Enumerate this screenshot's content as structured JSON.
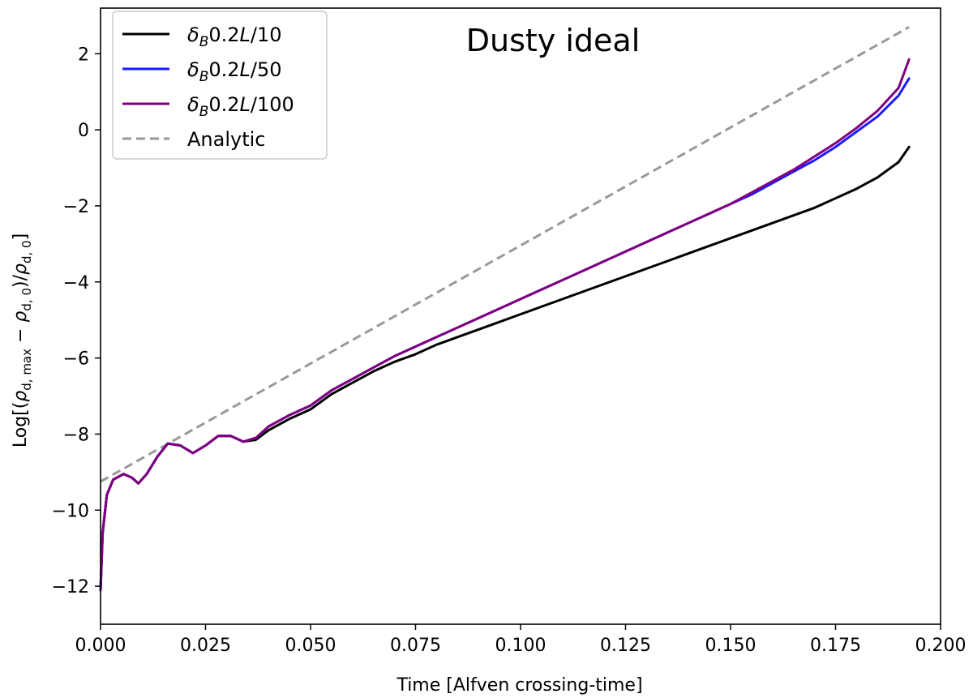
{
  "chart_data": {
    "type": "line",
    "title": "Dusty ideal",
    "xlabel": "Time [Alfven crossing-time]",
    "ylabel": "Log[(ρ_{d,max} − ρ_{d,0})/ρ_{d,0}]",
    "xlim": [
      0.0,
      0.2
    ],
    "ylim": [
      -13,
      3.2
    ],
    "xticks": [
      "0.000",
      "0.025",
      "0.050",
      "0.075",
      "0.100",
      "0.125",
      "0.150",
      "0.175",
      "0.200"
    ],
    "yticks": [
      "−12",
      "−10",
      "−8",
      "−6",
      "−4",
      "−2",
      "0",
      "2"
    ],
    "grid": false,
    "legend_position": "top-left",
    "series": [
      {
        "name": "δ_B 0.2L/10",
        "color": "#000000",
        "dash": "solid",
        "x": [
          0,
          0.0005,
          0.0015,
          0.003,
          0.0055,
          0.0075,
          0.009,
          0.011,
          0.0135,
          0.016,
          0.019,
          0.022,
          0.025,
          0.028,
          0.031,
          0.034,
          0.037,
          0.04,
          0.045,
          0.05,
          0.055,
          0.06,
          0.065,
          0.07,
          0.075,
          0.08,
          0.085,
          0.09,
          0.095,
          0.1,
          0.105,
          0.11,
          0.115,
          0.12,
          0.125,
          0.13,
          0.135,
          0.14,
          0.145,
          0.15,
          0.155,
          0.16,
          0.165,
          0.17,
          0.175,
          0.18,
          0.185,
          0.19,
          0.1925
        ],
        "y": [
          -12.1,
          -10.6,
          -9.6,
          -9.2,
          -9.05,
          -9.15,
          -9.3,
          -9.05,
          -8.6,
          -8.25,
          -8.3,
          -8.5,
          -8.3,
          -8.05,
          -8.05,
          -8.2,
          -8.15,
          -7.9,
          -7.6,
          -7.35,
          -6.95,
          -6.65,
          -6.35,
          -6.1,
          -5.9,
          -5.65,
          -5.45,
          -5.25,
          -5.05,
          -4.85,
          -4.65,
          -4.45,
          -4.25,
          -4.05,
          -3.85,
          -3.65,
          -3.45,
          -3.25,
          -3.05,
          -2.85,
          -2.65,
          -2.45,
          -2.25,
          -2.05,
          -1.8,
          -1.55,
          -1.25,
          -0.85,
          -0.45
        ]
      },
      {
        "name": "δ_B 0.2L/50",
        "color": "#1a1aff",
        "dash": "solid",
        "x": [
          0,
          0.0005,
          0.0015,
          0.003,
          0.0055,
          0.0075,
          0.009,
          0.011,
          0.0135,
          0.016,
          0.019,
          0.022,
          0.025,
          0.028,
          0.031,
          0.034,
          0.037,
          0.04,
          0.045,
          0.05,
          0.055,
          0.06,
          0.065,
          0.07,
          0.075,
          0.08,
          0.085,
          0.09,
          0.095,
          0.1,
          0.105,
          0.11,
          0.115,
          0.12,
          0.125,
          0.13,
          0.135,
          0.14,
          0.145,
          0.15,
          0.155,
          0.16,
          0.165,
          0.17,
          0.175,
          0.18,
          0.185,
          0.19,
          0.1925
        ],
        "y": [
          -12.1,
          -10.6,
          -9.6,
          -9.2,
          -9.05,
          -9.15,
          -9.3,
          -9.05,
          -8.6,
          -8.25,
          -8.3,
          -8.5,
          -8.3,
          -8.05,
          -8.05,
          -8.2,
          -8.1,
          -7.8,
          -7.5,
          -7.25,
          -6.85,
          -6.55,
          -6.25,
          -5.95,
          -5.7,
          -5.45,
          -5.2,
          -4.95,
          -4.7,
          -4.45,
          -4.2,
          -3.95,
          -3.7,
          -3.45,
          -3.2,
          -2.95,
          -2.7,
          -2.45,
          -2.2,
          -1.95,
          -1.7,
          -1.4,
          -1.1,
          -0.8,
          -0.45,
          -0.05,
          0.35,
          0.9,
          1.35
        ]
      },
      {
        "name": "δ_B 0.2L/100",
        "color": "#800080",
        "dash": "solid",
        "x": [
          0,
          0.0005,
          0.0015,
          0.003,
          0.0055,
          0.0075,
          0.009,
          0.011,
          0.0135,
          0.016,
          0.019,
          0.022,
          0.025,
          0.028,
          0.031,
          0.034,
          0.037,
          0.04,
          0.045,
          0.05,
          0.055,
          0.06,
          0.065,
          0.07,
          0.075,
          0.08,
          0.085,
          0.09,
          0.095,
          0.1,
          0.105,
          0.11,
          0.115,
          0.12,
          0.125,
          0.13,
          0.135,
          0.14,
          0.145,
          0.15,
          0.155,
          0.16,
          0.165,
          0.17,
          0.175,
          0.18,
          0.185,
          0.19,
          0.1925
        ],
        "y": [
          -12.1,
          -10.6,
          -9.6,
          -9.2,
          -9.05,
          -9.15,
          -9.3,
          -9.05,
          -8.6,
          -8.25,
          -8.3,
          -8.5,
          -8.3,
          -8.05,
          -8.05,
          -8.2,
          -8.1,
          -7.8,
          -7.5,
          -7.25,
          -6.85,
          -6.55,
          -6.25,
          -5.95,
          -5.7,
          -5.45,
          -5.2,
          -4.95,
          -4.7,
          -4.45,
          -4.2,
          -3.95,
          -3.7,
          -3.45,
          -3.2,
          -2.95,
          -2.7,
          -2.45,
          -2.2,
          -1.95,
          -1.65,
          -1.35,
          -1.05,
          -0.7,
          -0.35,
          0.05,
          0.5,
          1.1,
          1.85
        ]
      },
      {
        "name": "Analytic",
        "color": "#999999",
        "dash": "dashed",
        "x": [
          0,
          0.1925
        ],
        "y": [
          -9.25,
          2.7
        ]
      }
    ]
  }
}
